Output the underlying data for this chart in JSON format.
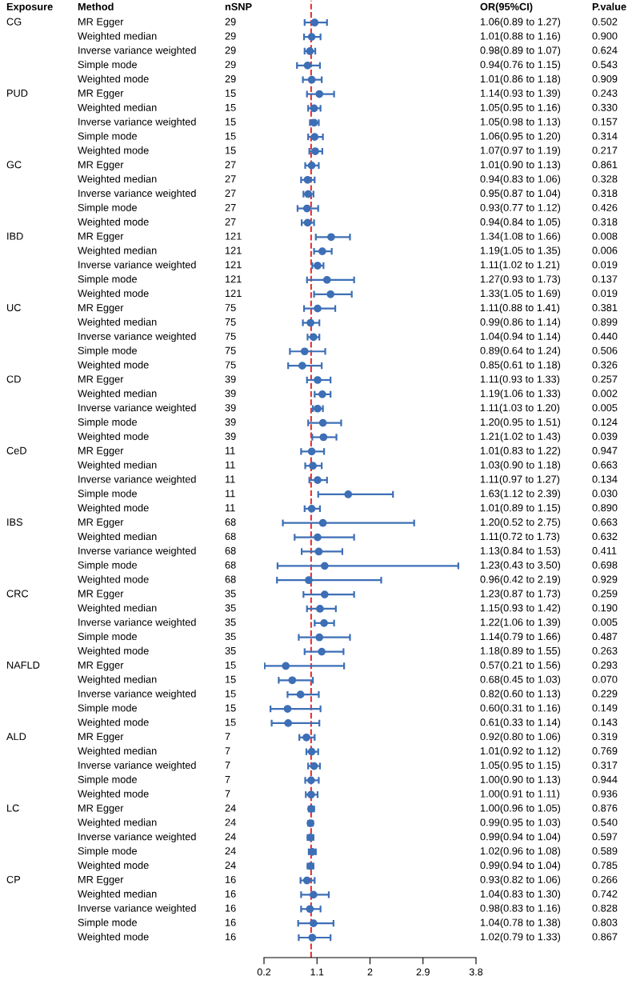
{
  "chart_data": {
    "type": "scatter",
    "orientation": "horizontal",
    "marker": "circle",
    "color": "#3d6fb6",
    "grid": false,
    "categories": [
      "MR Egger",
      "Weighted median",
      "Inverse variance weighted",
      "Simple mode",
      "Weighted mode",
      "MR Egger",
      "Weighted median",
      "Inverse variance weighted",
      "Simple mode",
      "Weighted mode",
      "MR Egger",
      "Weighted median",
      "Inverse variance weighted",
      "Simple mode",
      "Weighted mode",
      "MR Egger",
      "Weighted median",
      "Inverse variance weighted",
      "Simple mode",
      "Weighted mode",
      "MR Egger",
      "Weighted median",
      "Inverse variance weighted",
      "Simple mode",
      "Weighted mode",
      "MR Egger",
      "Weighted median",
      "Inverse variance weighted",
      "Simple mode",
      "Weighted mode",
      "MR Egger",
      "Weighted median",
      "Inverse variance weighted",
      "Simple mode",
      "Weighted mode",
      "MR Egger",
      "Weighted median",
      "Inverse variance weighted",
      "Simple mode",
      "Weighted mode",
      "MR Egger",
      "Weighted median",
      "Inverse variance weighted",
      "Simple mode",
      "Weighted mode",
      "MR Egger",
      "Weighted median",
      "Inverse variance weighted",
      "Simple mode",
      "Weighted mode",
      "MR Egger",
      "Weighted median",
      "Inverse variance weighted",
      "Simple mode",
      "Weighted mode",
      "MR Egger",
      "Weighted median",
      "Inverse variance weighted",
      "Simple mode",
      "Weighted mode",
      "MR Egger",
      "Weighted median",
      "Inverse variance weighted",
      "Simple mode",
      "Weighted mode"
    ],
    "values": [
      1.06,
      1.01,
      0.98,
      0.94,
      1.01,
      1.14,
      1.05,
      1.05,
      1.06,
      1.07,
      1.01,
      0.94,
      0.95,
      0.93,
      0.94,
      1.34,
      1.19,
      1.11,
      1.27,
      1.33,
      1.11,
      0.99,
      1.04,
      0.89,
      0.85,
      1.11,
      1.19,
      1.11,
      1.2,
      1.21,
      1.01,
      1.03,
      1.11,
      1.63,
      1.01,
      1.2,
      1.11,
      1.13,
      1.23,
      0.96,
      1.23,
      1.15,
      1.22,
      1.14,
      1.18,
      0.57,
      0.68,
      0.82,
      0.6,
      0.61,
      0.92,
      1.01,
      1.05,
      1.0,
      1.0,
      1.0,
      0.99,
      0.99,
      1.02,
      0.99,
      0.93,
      1.04,
      0.98,
      1.04,
      1.02
    ],
    "errors": [
      [
        0.89,
        1.27
      ],
      [
        0.88,
        1.16
      ],
      [
        0.89,
        1.07
      ],
      [
        0.76,
        1.15
      ],
      [
        0.86,
        1.18
      ],
      [
        0.93,
        1.39
      ],
      [
        0.95,
        1.16
      ],
      [
        0.98,
        1.13
      ],
      [
        0.95,
        1.2
      ],
      [
        0.97,
        1.19
      ],
      [
        0.9,
        1.13
      ],
      [
        0.83,
        1.06
      ],
      [
        0.87,
        1.04
      ],
      [
        0.77,
        1.12
      ],
      [
        0.84,
        1.05
      ],
      [
        1.08,
        1.66
      ],
      [
        1.05,
        1.35
      ],
      [
        1.02,
        1.21
      ],
      [
        0.93,
        1.73
      ],
      [
        1.05,
        1.69
      ],
      [
        0.88,
        1.41
      ],
      [
        0.86,
        1.14
      ],
      [
        0.94,
        1.14
      ],
      [
        0.64,
        1.24
      ],
      [
        0.61,
        1.18
      ],
      [
        0.93,
        1.33
      ],
      [
        1.06,
        1.33
      ],
      [
        1.03,
        1.2
      ],
      [
        0.95,
        1.51
      ],
      [
        1.02,
        1.43
      ],
      [
        0.83,
        1.22
      ],
      [
        0.9,
        1.18
      ],
      [
        0.97,
        1.27
      ],
      [
        1.12,
        2.39
      ],
      [
        0.89,
        1.15
      ],
      [
        0.52,
        2.75
      ],
      [
        0.72,
        1.73
      ],
      [
        0.84,
        1.53
      ],
      [
        0.43,
        3.5
      ],
      [
        0.42,
        2.19
      ],
      [
        0.87,
        1.73
      ],
      [
        0.93,
        1.42
      ],
      [
        1.06,
        1.39
      ],
      [
        0.79,
        1.66
      ],
      [
        0.89,
        1.55
      ],
      [
        0.21,
        1.56
      ],
      [
        0.45,
        1.03
      ],
      [
        0.6,
        1.13
      ],
      [
        0.31,
        1.16
      ],
      [
        0.33,
        1.14
      ],
      [
        0.8,
        1.06
      ],
      [
        0.92,
        1.12
      ],
      [
        0.95,
        1.15
      ],
      [
        0.9,
        1.13
      ],
      [
        0.91,
        1.11
      ],
      [
        0.96,
        1.05
      ],
      [
        0.95,
        1.03
      ],
      [
        0.94,
        1.04
      ],
      [
        0.96,
        1.08
      ],
      [
        0.94,
        1.04
      ],
      [
        0.82,
        1.06
      ],
      [
        0.83,
        1.3
      ],
      [
        0.83,
        1.16
      ],
      [
        0.78,
        1.38
      ],
      [
        0.79,
        1.33
      ]
    ],
    "value_labels": [
      "1.06(0.89 to 1.27)",
      "1.01(0.88 to 1.16)",
      "0.98(0.89 to 1.07)",
      "0.94(0.76 to 1.15)",
      "1.01(0.86 to 1.18)",
      "1.14(0.93 to 1.39)",
      "1.05(0.95 to 1.16)",
      "1.05(0.98 to 1.13)",
      "1.06(0.95 to 1.20)",
      "1.07(0.97 to 1.19)",
      "1.01(0.90 to 1.13)",
      "0.94(0.83 to 1.06)",
      "0.95(0.87 to 1.04)",
      "0.93(0.77 to 1.12)",
      "0.94(0.84 to 1.05)",
      "1.34(1.08 to 1.66)",
      "1.19(1.05 to 1.35)",
      "1.11(1.02 to 1.21)",
      "1.27(0.93 to 1.73)",
      "1.33(1.05 to 1.69)",
      "1.11(0.88 to 1.41)",
      "0.99(0.86 to 1.14)",
      "1.04(0.94 to 1.14)",
      "0.89(0.64 to 1.24)",
      "0.85(0.61 to 1.18)",
      "1.11(0.93 to 1.33)",
      "1.19(1.06 to 1.33)",
      "1.11(1.03 to 1.20)",
      "1.20(0.95 to 1.51)",
      "1.21(1.02 to 1.43)",
      "1.01(0.83 to 1.22)",
      "1.03(0.90 to 1.18)",
      "1.11(0.97 to 1.27)",
      "1.63(1.12 to 2.39)",
      "1.01(0.89 to 1.15)",
      "1.20(0.52 to 2.75)",
      "1.11(0.72 to 1.73)",
      "1.13(0.84 to 1.53)",
      "1.23(0.43 to 3.50)",
      "0.96(0.42 to 2.19)",
      "1.23(0.87 to 1.73)",
      "1.15(0.93 to 1.42)",
      "1.22(1.06 to 1.39)",
      "1.14(0.79 to 1.66)",
      "1.18(0.89 to 1.55)",
      "0.57(0.21 to 1.56)",
      "0.68(0.45 to 1.03)",
      "0.82(0.60 to 1.13)",
      "0.60(0.31 to 1.16)",
      "0.61(0.33 to 1.14)",
      "0.92(0.80 to 1.06)",
      "1.01(0.92 to 1.12)",
      "1.05(0.95 to 1.15)",
      "1.00(0.90 to 1.13)",
      "1.00(0.91 to 1.11)",
      "1.00(0.96 to 1.05)",
      "0.99(0.95 to 1.03)",
      "0.99(0.94 to 1.04)",
      "1.02(0.96 to 1.08)",
      "0.99(0.94 to 1.04)",
      "0.93(0.82 to 1.06)",
      "1.04(0.83 to 1.30)",
      "0.98(0.83 to 1.16)",
      "1.04(0.78 to 1.38)",
      "1.02(0.79 to 1.33)"
    ],
    "xlim": [
      0.2,
      3.8
    ],
    "xticks": [
      0.2,
      1.1,
      2,
      2.9,
      3.8
    ],
    "ref_lines": [
      {
        "axis": "x",
        "value": 1,
        "color": "#e8262a",
        "line_style": "dashed"
      }
    ],
    "annotations": [
      "Exposure",
      "Method",
      "nSNP",
      "OR(95%CI)",
      "P.value",
      "CG",
      "PUD",
      "GC",
      "IBD",
      "UC",
      "CD",
      "CeD",
      "IBS",
      "CRC",
      "NAFLD",
      "ALD",
      "LC",
      "CP",
      "29",
      "29",
      "29",
      "29",
      "29",
      "15",
      "15",
      "15",
      "15",
      "15",
      "27",
      "27",
      "27",
      "27",
      "27",
      "121",
      "121",
      "121",
      "121",
      "121",
      "75",
      "75",
      "75",
      "75",
      "75",
      "39",
      "39",
      "39",
      "39",
      "39",
      "11",
      "11",
      "11",
      "11",
      "11",
      "68",
      "68",
      "68",
      "68",
      "68",
      "35",
      "35",
      "35",
      "35",
      "35",
      "15",
      "15",
      "15",
      "15",
      "15",
      "7",
      "7",
      "7",
      "7",
      "7",
      "24",
      "24",
      "24",
      "24",
      "24",
      "16",
      "16",
      "16",
      "16",
      "16",
      "0.502",
      "0.900",
      "0.624",
      "0.543",
      "0.909",
      "0.243",
      "0.330",
      "0.157",
      "0.314",
      "0.217",
      "0.861",
      "0.328",
      "0.318",
      "0.426",
      "0.318",
      "0.008",
      "0.006",
      "0.019",
      "0.137",
      "0.019",
      "0.381",
      "0.899",
      "0.440",
      "0.506",
      "0.326",
      "0.257",
      "0.002",
      "0.005",
      "0.124",
      "0.039",
      "0.947",
      "0.663",
      "0.134",
      "0.030",
      "0.890",
      "0.663",
      "0.632",
      "0.411",
      "0.698",
      "0.929",
      "0.259",
      "0.190",
      "0.005",
      "0.487",
      "0.263",
      "0.293",
      "0.070",
      "0.229",
      "0.149",
      "0.143",
      "0.319",
      "0.769",
      "0.317",
      "0.944",
      "0.936",
      "0.876",
      "0.540",
      "0.597",
      "0.589",
      "0.785",
      "0.266",
      "0.742",
      "0.828",
      "0.803",
      "0.867"
    ]
  }
}
